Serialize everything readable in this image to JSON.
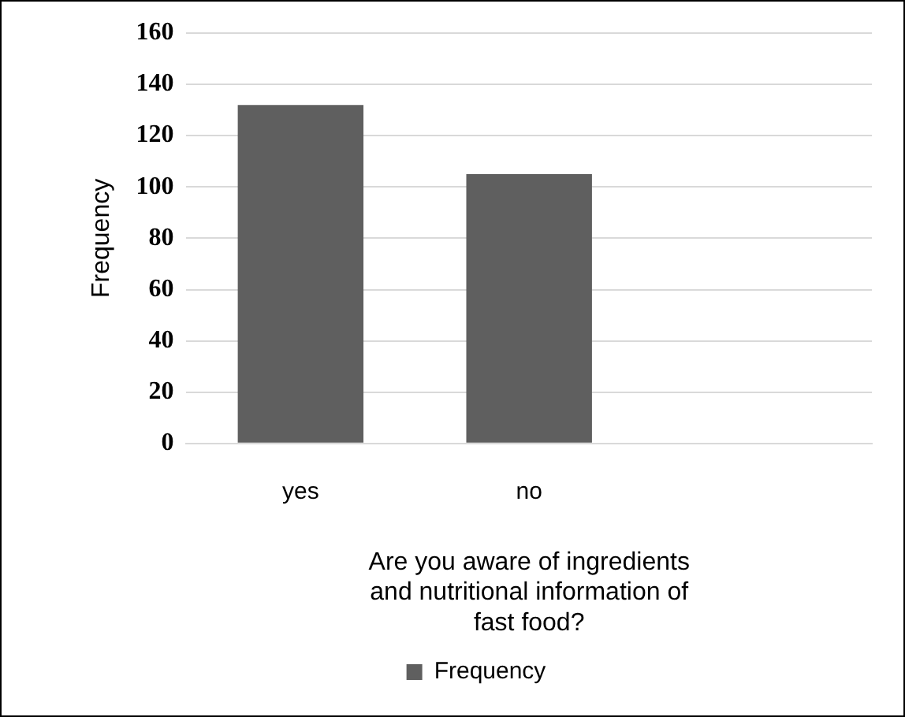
{
  "chart_data": {
    "type": "bar",
    "categories": [
      "yes",
      "no",
      null
    ],
    "series": [
      {
        "name": "Frequency",
        "color": "#5f5f5f",
        "values": [
          132,
          105,
          null
        ]
      }
    ],
    "ylabel": "Frequency",
    "xlabel": "Are you aware of ingredients and nutritional information of fast food?",
    "ylim": [
      0,
      160
    ],
    "yticks": [
      0,
      20,
      40,
      60,
      80,
      100,
      120,
      140,
      160
    ],
    "grid": "y",
    "legend": "bottom"
  }
}
